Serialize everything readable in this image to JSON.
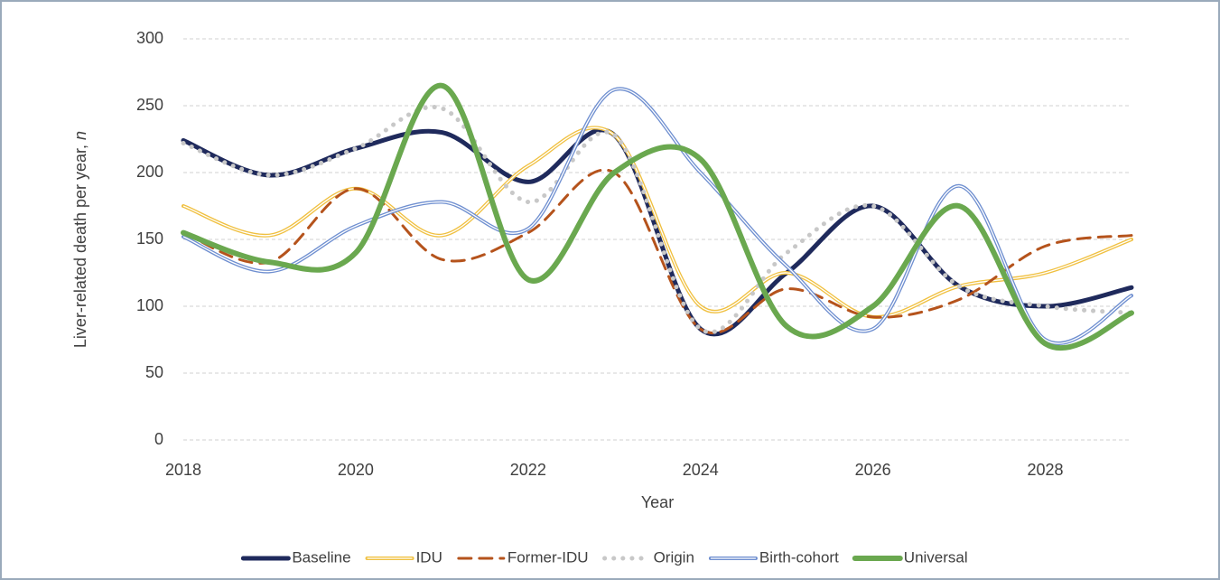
{
  "chart_data": {
    "type": "line",
    "y_label": "Liver-related death per year, ",
    "y_label_italic": "n",
    "x_label": "Year",
    "x": [
      2018,
      2019,
      2020,
      2021,
      2022,
      2023,
      2024,
      2025,
      2026,
      2027,
      2028,
      2029
    ],
    "xlim": [
      2018,
      2029
    ],
    "xticks": [
      2018,
      2020,
      2022,
      2024,
      2026,
      2028
    ],
    "ylim": [
      0,
      300
    ],
    "yticks": [
      0,
      50,
      100,
      150,
      200,
      250,
      300
    ],
    "grid": true,
    "legend": "bottom",
    "series": [
      {
        "name": "Baseline",
        "color": "#1f2a5c",
        "style": "solid",
        "line_width": 5,
        "values": [
          224,
          198,
          218,
          230,
          193,
          228,
          83,
          125,
          175,
          115,
          100,
          114
        ]
      },
      {
        "name": "IDU",
        "color": "#f0c040",
        "style": "double",
        "line_width": 4,
        "values": [
          175,
          153,
          188,
          153,
          205,
          228,
          100,
          125,
          92,
          115,
          125,
          150
        ]
      },
      {
        "name": "Former-IDU",
        "color": "#b5531c",
        "style": "dashed",
        "line_width": 3,
        "values": [
          155,
          133,
          188,
          135,
          155,
          200,
          83,
          113,
          92,
          105,
          145,
          153
        ]
      },
      {
        "name": "Origin",
        "color": "#c8c8c8",
        "style": "dotted",
        "line_width": 5,
        "values": [
          222,
          198,
          218,
          248,
          178,
          228,
          83,
          140,
          175,
          115,
          100,
          95
        ]
      },
      {
        "name": "Birth-cohort",
        "color": "#6f8fd0",
        "style": "double",
        "line_width": 4,
        "values": [
          152,
          126,
          160,
          178,
          158,
          262,
          200,
          130,
          83,
          190,
          75,
          108
        ]
      },
      {
        "name": "Universal",
        "color": "#6aa84f",
        "style": "solid",
        "line_width": 6,
        "values": [
          155,
          133,
          140,
          265,
          120,
          200,
          210,
          85,
          100,
          175,
          72,
          95
        ]
      }
    ]
  }
}
